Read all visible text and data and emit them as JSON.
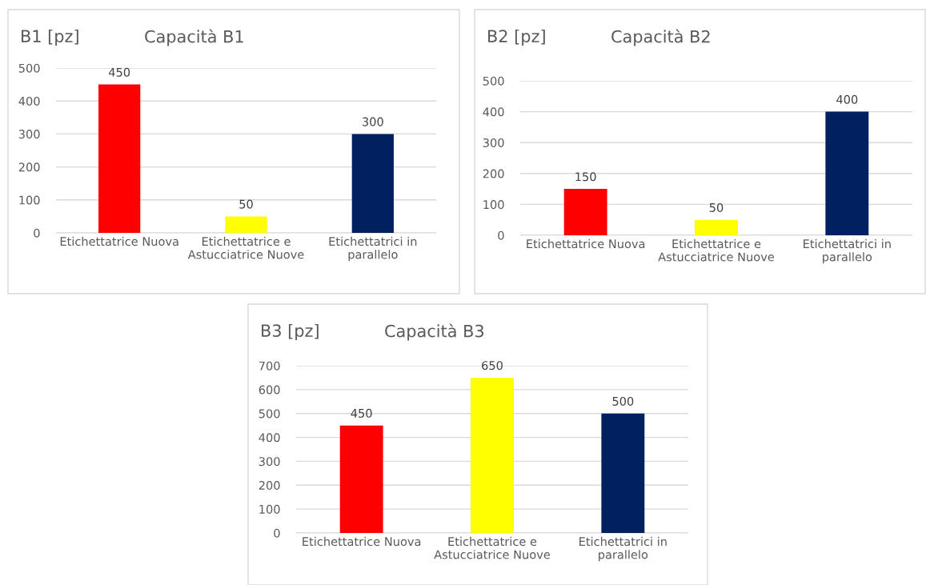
{
  "chart_data": [
    {
      "type": "bar",
      "title": "Capacità B1",
      "ylabel": "B1 [pz]",
      "categories": [
        "Etichettatrice Nuova",
        "Etichettatrice e\nAstucciatrice Nuove",
        "Etichettatrici in\nparallelo"
      ],
      "values": [
        450,
        50,
        300
      ],
      "colors": [
        "#ff0000",
        "#ffff00",
        "#002060"
      ],
      "ylim": [
        0,
        500
      ],
      "yticks": [
        0,
        100,
        200,
        300,
        400,
        500
      ],
      "grid": "y",
      "data_labels": true
    },
    {
      "type": "bar",
      "title": "Capacità B2",
      "ylabel": "B2 [pz]",
      "categories": [
        "Etichettatrice Nuova",
        "Etichettatrice e\nAstucciatrice Nuove",
        "Etichettatrici in\nparallelo"
      ],
      "values": [
        150,
        50,
        400
      ],
      "colors": [
        "#ff0000",
        "#ffff00",
        "#002060"
      ],
      "ylim": [
        0,
        500
      ],
      "yticks": [
        0,
        100,
        200,
        300,
        400,
        500
      ],
      "grid": "y",
      "data_labels": true
    },
    {
      "type": "bar",
      "title": "Capacità B3",
      "ylabel": "B3 [pz]",
      "categories": [
        "Etichettatrice Nuova",
        "Etichettatrice e\nAstucciatrice Nuove",
        "Etichettatrici in\nparallelo"
      ],
      "values": [
        450,
        650,
        500
      ],
      "colors": [
        "#ff0000",
        "#ffff00",
        "#002060"
      ],
      "ylim": [
        0,
        700
      ],
      "yticks": [
        0,
        100,
        200,
        300,
        400,
        500,
        600,
        700
      ],
      "grid": "y",
      "data_labels": true
    }
  ]
}
